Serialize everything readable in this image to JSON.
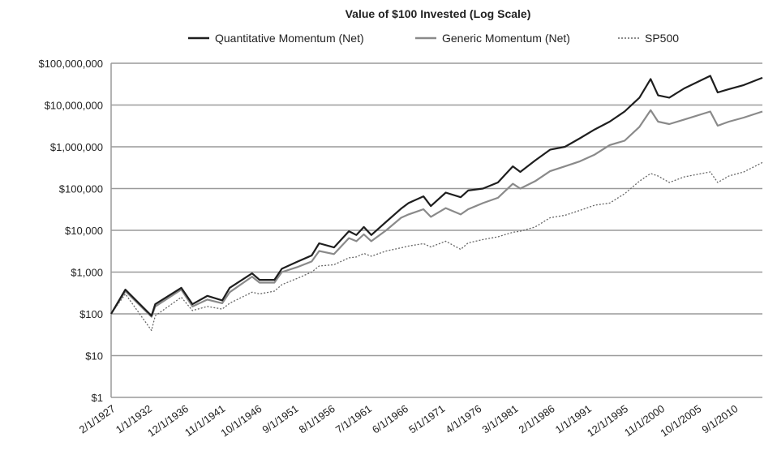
{
  "chart_data": {
    "type": "line",
    "title": "Value of $100 Invested (Log Scale)",
    "xlabel": "",
    "ylabel": "",
    "y_scale": "log",
    "ylim": [
      1,
      100000000
    ],
    "y_ticks": [
      1,
      10,
      100,
      1000,
      10000,
      100000,
      1000000,
      10000000,
      100000000
    ],
    "y_tick_labels": [
      "$1",
      "$10",
      "$100",
      "$1,000",
      "$10,000",
      "$100,000",
      "$1,000,000",
      "$10,000,000",
      "$100,000,000"
    ],
    "x_tick_labels": [
      "2/1/1927",
      "1/1/1932",
      "12/1/1936",
      "11/1/1941",
      "10/1/1946",
      "9/1/1951",
      "8/1/1956",
      "7/1/1961",
      "6/1/1966",
      "5/1/1971",
      "4/1/1976",
      "3/1/1981",
      "2/1/1986",
      "1/1/1991",
      "12/1/1995",
      "11/1/2000",
      "10/1/2005",
      "9/1/2010"
    ],
    "xlim": [
      1927.08,
      2014.5
    ],
    "grid": "horizontal",
    "legend_position": "top",
    "x": [
      1927.08,
      1929,
      1932.5,
      1933,
      1936.5,
      1938,
      1940,
      1942,
      1943,
      1946,
      1947,
      1949,
      1950,
      1952,
      1954,
      1955,
      1957,
      1959,
      1960,
      1961,
      1962,
      1964,
      1966,
      1967,
      1969,
      1970,
      1972,
      1974,
      1975,
      1977,
      1979,
      1981,
      1982,
      1984,
      1986,
      1988,
      1990,
      1992,
      1994,
      1996,
      1998,
      1999.5,
      2000.5,
      2002,
      2004,
      2007.5,
      2008.5,
      2010,
      2012,
      2014.5
    ],
    "series": [
      {
        "name": "Quantitative Momentum (Net)",
        "color": "#1e1e1e",
        "style": "solid",
        "values": [
          100,
          380,
          90,
          170,
          420,
          170,
          270,
          210,
          420,
          930,
          650,
          650,
          1200,
          1750,
          2500,
          4900,
          3900,
          9500,
          7700,
          12000,
          7700,
          16000,
          33000,
          45000,
          65000,
          38000,
          80000,
          62000,
          90000,
          100000,
          140000,
          340000,
          250000,
          470000,
          850000,
          1000000,
          1600000,
          2600000,
          4000000,
          7000000,
          15000000,
          42000000,
          17000000,
          15000000,
          25000000,
          50000000,
          20000000,
          24000000,
          30000000,
          45000000
        ]
      },
      {
        "name": "Generic Momentum (Net)",
        "color": "#8a8a8a",
        "style": "solid",
        "values": [
          100,
          350,
          85,
          150,
          380,
          150,
          220,
          180,
          330,
          780,
          560,
          560,
          1000,
          1300,
          1800,
          3200,
          2700,
          6500,
          5500,
          8000,
          5500,
          10000,
          20000,
          24000,
          32000,
          21000,
          34000,
          24000,
          32000,
          45000,
          60000,
          130000,
          100000,
          150000,
          260000,
          340000,
          450000,
          650000,
          1100000,
          1400000,
          3000000,
          7500000,
          4000000,
          3500000,
          4500000,
          7000000,
          3200000,
          4000000,
          5000000,
          7000000
        ]
      },
      {
        "name": "SP500",
        "color": "#666666",
        "style": "dotted",
        "values": [
          100,
          300,
          40,
          90,
          250,
          120,
          150,
          130,
          180,
          330,
          300,
          350,
          500,
          700,
          1000,
          1400,
          1500,
          2200,
          2300,
          2800,
          2400,
          3200,
          3800,
          4200,
          4800,
          4000,
          5500,
          3500,
          5000,
          6000,
          7000,
          9000,
          9500,
          12000,
          20000,
          23000,
          30000,
          40000,
          45000,
          75000,
          150000,
          230000,
          200000,
          140000,
          190000,
          250000,
          140000,
          200000,
          250000,
          420000
        ]
      }
    ]
  }
}
